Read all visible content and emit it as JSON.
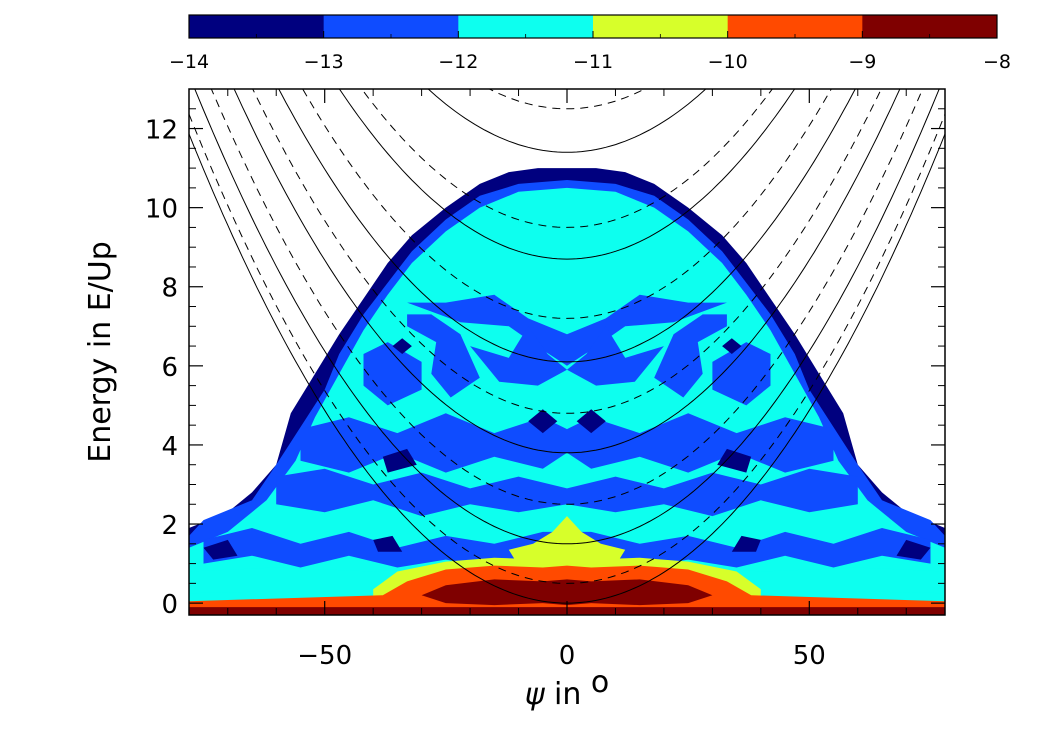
{
  "chart_data": {
    "type": "heatmap",
    "xlabel": "ψ in °",
    "xlabel_symbol": "ψ",
    "xlabel_rest": " in ",
    "xlabel_unit": "o",
    "ylabel": "Energy in E/Up",
    "xlim": [
      -78,
      78
    ],
    "ylim": [
      -0.3,
      13
    ],
    "x_ticks": [
      -50,
      0,
      50
    ],
    "y_ticks": [
      0,
      2,
      4,
      6,
      8,
      10,
      12
    ],
    "colorbar": {
      "range": [
        -14,
        -8
      ],
      "ticks": [
        -14,
        -13,
        -12,
        -11,
        -10,
        -9,
        -8
      ],
      "levels": [
        {
          "from": -14,
          "to": -13,
          "color": "#00007f"
        },
        {
          "from": -13,
          "to": -12,
          "color": "#0f4cff"
        },
        {
          "from": -12,
          "to": -11,
          "color": "#0dffef"
        },
        {
          "from": -11,
          "to": -10,
          "color": "#d7ff2a"
        },
        {
          "from": -10,
          "to": -9,
          "color": "#ff4a00"
        },
        {
          "from": -9,
          "to": -8,
          "color": "#7f0000"
        }
      ]
    },
    "envelope": {
      "x": [
        -78,
        -78,
        -70,
        -65,
        -60,
        -57,
        -52,
        -47,
        -42,
        -37,
        -32,
        -25,
        -18,
        -12,
        -6,
        0,
        6,
        12,
        18,
        25,
        32,
        37,
        42,
        47,
        52,
        57,
        60,
        65,
        70,
        78,
        78
      ],
      "y": [
        -0.3,
        1.9,
        2.3,
        2.8,
        3.5,
        4.8,
        5.8,
        6.8,
        7.7,
        8.6,
        9.3,
        10.0,
        10.6,
        10.9,
        11.0,
        11.0,
        11.0,
        10.9,
        10.6,
        10.0,
        9.3,
        8.6,
        7.7,
        6.8,
        5.8,
        4.8,
        3.5,
        2.8,
        2.3,
        1.9,
        -0.3
      ]
    },
    "regions": [
      {
        "level": -13,
        "x": [
          -78,
          -78,
          -75,
          -65,
          -60,
          -50,
          -47,
          -42,
          -37,
          -32,
          -25,
          -18,
          -10,
          0,
          10,
          18,
          25,
          32,
          37,
          42,
          47,
          50,
          60,
          65,
          75,
          78,
          78
        ],
        "y": [
          -0.3,
          1.7,
          2.1,
          2.6,
          3.5,
          5.4,
          6.3,
          7.3,
          8.1,
          8.9,
          9.7,
          10.3,
          10.6,
          10.7,
          10.6,
          10.3,
          9.7,
          8.9,
          8.1,
          7.3,
          6.3,
          5.4,
          3.5,
          2.6,
          2.1,
          1.7,
          -0.3
        ]
      },
      {
        "level": -12,
        "x": [
          -78,
          -78,
          -70,
          -62,
          -56,
          -52,
          -47,
          -42,
          -37,
          -32,
          -25,
          -18,
          -10,
          0,
          10,
          18,
          25,
          32,
          37,
          42,
          47,
          52,
          56,
          62,
          70,
          78,
          78
        ],
        "y": [
          -0.3,
          1.4,
          1.8,
          2.6,
          3.6,
          4.7,
          5.8,
          6.9,
          7.8,
          8.6,
          9.4,
          10.0,
          10.4,
          10.5,
          10.4,
          10.0,
          9.4,
          8.6,
          7.8,
          6.9,
          5.8,
          4.7,
          3.6,
          2.6,
          1.8,
          1.4,
          -0.3
        ]
      },
      {
        "level": -13,
        "x": [
          -33,
          -25,
          -15,
          -8,
          0,
          8,
          15,
          25,
          33,
          22,
          12,
          5,
          0,
          -5,
          -12,
          -22
        ],
        "y": [
          7.6,
          7.6,
          7.8,
          7.2,
          6.8,
          7.2,
          7.8,
          7.6,
          7.6,
          7.1,
          7.0,
          6.4,
          6.0,
          6.4,
          7.0,
          7.1
        ]
      },
      {
        "level": -13,
        "x": [
          -33,
          -27,
          -28,
          -24,
          -18,
          -22,
          -28,
          -33
        ],
        "y": [
          7.0,
          6.6,
          5.8,
          5.2,
          5.7,
          6.8,
          7.3,
          7.3
        ]
      },
      {
        "level": -13,
        "x": [
          33,
          27,
          28,
          24,
          18,
          22,
          28,
          33
        ],
        "y": [
          7.0,
          6.6,
          5.8,
          5.2,
          5.7,
          6.8,
          7.3,
          7.3
        ]
      },
      {
        "level": -13,
        "x": [
          -20,
          -12,
          -8,
          -4,
          0,
          4,
          8,
          12,
          20,
          14,
          6,
          0,
          -6,
          -14
        ],
        "y": [
          6.5,
          6.2,
          7.0,
          6.3,
          5.9,
          6.3,
          7.0,
          6.2,
          6.5,
          5.6,
          5.5,
          5.9,
          5.5,
          5.6
        ]
      },
      {
        "level": -13,
        "x": [
          -42,
          -37,
          -30,
          -30,
          -37,
          -42
        ],
        "y": [
          6.3,
          6.6,
          6.1,
          5.4,
          5.0,
          5.5
        ]
      },
      {
        "level": -13,
        "x": [
          42,
          37,
          30,
          30,
          37,
          42
        ],
        "y": [
          6.3,
          6.6,
          6.1,
          5.4,
          5.0,
          5.5
        ]
      },
      {
        "level": -13,
        "x": [
          -55,
          -45,
          -35,
          -25,
          -15,
          -5,
          0,
          5,
          15,
          25,
          35,
          45,
          55,
          55,
          45,
          35,
          25,
          15,
          5,
          0,
          -5,
          -15,
          -25,
          -35,
          -45,
          -55
        ],
        "y": [
          4.4,
          4.7,
          4.3,
          4.8,
          4.3,
          4.7,
          4.4,
          4.7,
          4.3,
          4.8,
          4.3,
          4.7,
          4.4,
          3.6,
          3.3,
          3.8,
          3.3,
          3.7,
          3.4,
          3.8,
          3.4,
          3.7,
          3.3,
          3.8,
          3.3,
          3.6
        ]
      },
      {
        "level": -13,
        "x": [
          -60,
          -50,
          -40,
          -30,
          -20,
          -10,
          0,
          10,
          20,
          30,
          40,
          50,
          60,
          60,
          50,
          40,
          30,
          20,
          10,
          0,
          -10,
          -20,
          -30,
          -40,
          -50,
          -60
        ],
        "y": [
          3.2,
          3.4,
          3.0,
          3.3,
          2.9,
          3.2,
          2.9,
          3.2,
          2.9,
          3.3,
          3.0,
          3.4,
          3.2,
          2.5,
          2.3,
          2.6,
          2.2,
          2.5,
          2.3,
          2.5,
          2.3,
          2.5,
          2.2,
          2.6,
          2.3,
          2.5
        ]
      },
      {
        "level": -13,
        "x": [
          -75,
          -65,
          -55,
          -45,
          -35,
          -25,
          -15,
          -5,
          5,
          15,
          25,
          35,
          45,
          55,
          65,
          75,
          75,
          65,
          55,
          45,
          35,
          25,
          15,
          5,
          -5,
          -15,
          -25,
          -35,
          -45,
          -55,
          -65,
          -75
        ],
        "y": [
          1.6,
          1.9,
          1.5,
          1.8,
          1.4,
          1.7,
          1.5,
          1.8,
          1.8,
          1.5,
          1.7,
          1.4,
          1.8,
          1.5,
          1.9,
          1.6,
          1.0,
          1.2,
          0.9,
          1.2,
          0.9,
          1.1,
          0.9,
          1.1,
          1.1,
          0.9,
          1.1,
          0.9,
          1.2,
          0.9,
          1.2,
          1.0
        ]
      },
      {
        "level": -12,
        "x": [
          -78,
          -60,
          -40,
          -30,
          -20,
          -10,
          0,
          10,
          20,
          30,
          40,
          60,
          78,
          78,
          60,
          40,
          30,
          20,
          10,
          0,
          -10,
          -20,
          -30,
          -40,
          -60,
          -78
        ],
        "y": [
          0.8,
          0.9,
          0.8,
          0.9,
          0.8,
          0.85,
          0.8,
          0.85,
          0.8,
          0.9,
          0.8,
          0.9,
          0.8,
          0.25,
          0.3,
          0.3,
          0.3,
          0.3,
          0.3,
          0.3,
          0.3,
          0.3,
          0.3,
          0.3,
          0.3,
          0.25
        ]
      },
      {
        "level": -14,
        "x": [
          -36,
          -34,
          -32,
          -34
        ],
        "y": [
          6.5,
          6.7,
          6.5,
          6.3
        ]
      },
      {
        "level": -14,
        "x": [
          36,
          34,
          32,
          34
        ],
        "y": [
          6.5,
          6.7,
          6.5,
          6.3
        ]
      },
      {
        "level": -14,
        "x": [
          -8,
          -5,
          -2,
          -5
        ],
        "y": [
          4.6,
          4.9,
          4.6,
          4.3
        ]
      },
      {
        "level": -14,
        "x": [
          8,
          5,
          2,
          5
        ],
        "y": [
          4.6,
          4.9,
          4.6,
          4.3
        ]
      },
      {
        "level": -14,
        "x": [
          -38,
          -33,
          -31,
          -37
        ],
        "y": [
          3.7,
          3.9,
          3.5,
          3.3
        ]
      },
      {
        "level": -14,
        "x": [
          38,
          33,
          31,
          37
        ],
        "y": [
          3.7,
          3.9,
          3.5,
          3.3
        ]
      },
      {
        "level": -14,
        "x": [
          -40,
          -36,
          -34,
          -39
        ],
        "y": [
          1.6,
          1.7,
          1.3,
          1.3
        ]
      },
      {
        "level": -14,
        "x": [
          40,
          36,
          34,
          39
        ],
        "y": [
          1.6,
          1.7,
          1.3,
          1.3
        ]
      },
      {
        "level": -14,
        "x": [
          -75,
          -70,
          -68,
          -73
        ],
        "y": [
          1.4,
          1.6,
          1.2,
          1.1
        ]
      },
      {
        "level": -14,
        "x": [
          75,
          70,
          68,
          73
        ],
        "y": [
          1.4,
          1.6,
          1.2,
          1.1
        ]
      },
      {
        "level": -11,
        "x": [
          -12,
          -7,
          -3,
          0,
          3,
          7,
          12,
          10,
          5,
          0,
          -5,
          -10
        ],
        "y": [
          1.35,
          1.5,
          1.8,
          2.2,
          1.8,
          1.5,
          1.35,
          0.95,
          0.85,
          0.8,
          0.85,
          0.95
        ]
      },
      {
        "level": -11,
        "x": [
          -40,
          -35,
          -25,
          -15,
          -5,
          0,
          5,
          15,
          25,
          35,
          40,
          40,
          -40
        ],
        "y": [
          0.35,
          0.8,
          1.05,
          1.15,
          1.1,
          1.15,
          1.1,
          1.15,
          1.05,
          0.8,
          0.35,
          -0.3,
          -0.3
        ]
      },
      {
        "level": -10,
        "x": [
          -78,
          -78,
          -38,
          -33,
          -25,
          -15,
          -5,
          0,
          5,
          15,
          25,
          33,
          38,
          78,
          78
        ],
        "y": [
          -0.3,
          0.05,
          0.2,
          0.55,
          0.85,
          0.95,
          0.9,
          0.95,
          0.9,
          0.95,
          0.85,
          0.55,
          0.2,
          0.05,
          -0.3
        ]
      },
      {
        "level": -9,
        "x": [
          -30,
          -25,
          -15,
          -5,
          0,
          5,
          15,
          25,
          30,
          25,
          15,
          5,
          0,
          -5,
          -15,
          -25
        ],
        "y": [
          0.2,
          0.45,
          0.6,
          0.55,
          0.6,
          0.55,
          0.6,
          0.45,
          0.2,
          0.0,
          -0.05,
          0.0,
          -0.05,
          0.0,
          -0.05,
          0.0
        ]
      },
      {
        "level": -9,
        "x": [
          -78,
          -78,
          78,
          78
        ],
        "y": [
          -0.3,
          -0.1,
          -0.1,
          -0.3
        ]
      }
    ],
    "overlay_curves": [
      {
        "style": "solid",
        "a": 0.00195,
        "offsets": [
          0,
          1.5,
          3.8,
          6.1,
          8.7,
          11.4,
          14.0,
          16.8,
          19.5,
          22.2,
          25.0
        ]
      },
      {
        "style": "dashed",
        "a": 0.00195,
        "offsets": [
          0.5,
          2.5,
          4.8,
          7.2,
          9.5,
          12.5,
          15.4,
          18.2,
          21.0,
          23.8
        ]
      }
    ]
  }
}
